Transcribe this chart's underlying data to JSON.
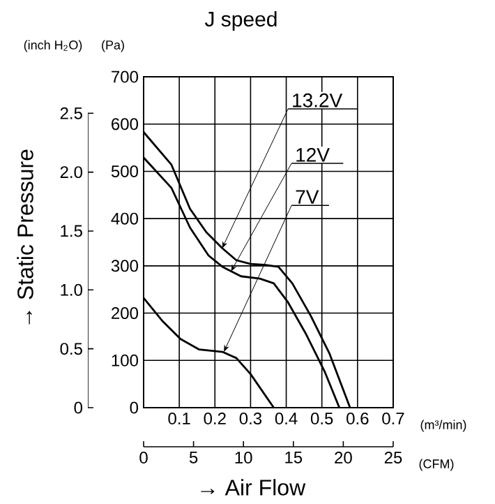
{
  "chart_data": {
    "type": "line",
    "title": "J speed",
    "xlabel": "→ Air Flow",
    "y2label": "→ Static Pressure",
    "xlim": [
      0,
      0.7
    ],
    "xticks": [
      0.1,
      0.2,
      0.3,
      0.4,
      0.5,
      0.6,
      0.7
    ],
    "ylim": [
      0,
      700
    ],
    "yticks": [
      0,
      100,
      200,
      300,
      400,
      500,
      600,
      700
    ],
    "y2lim": [
      0,
      2.81
    ],
    "y2ticks": [
      0,
      0.5,
      {
        "value": 1,
        "label": "1.0"
      },
      1.5,
      {
        "value": 2,
        "label": "2.0"
      },
      2.5
    ],
    "x2lim": [
      0,
      25
    ],
    "x2ticks": [
      0,
      5,
      10,
      15,
      20,
      25
    ],
    "grid": true,
    "annotations": [
      "(m³/min)",
      "(CFM)",
      "(inch H$_{2}$O)",
      "(Pa)",
      {
        "text": "13.2V",
        "x": 0.22,
        "y": 337
      },
      {
        "text": "12V",
        "x": 0.245,
        "y": 288
      },
      {
        "text": "7V",
        "x": 0.225,
        "y": 118
      }
    ],
    "series": [
      {
        "color": "#000000",
        "x": [
          0,
          0.078,
          0.13,
          0.176,
          0.221,
          0.26,
          0.3,
          0.339,
          0.378,
          0.417,
          0.469,
          0.521,
          0.579
        ],
        "values": [
          583,
          514,
          421,
          371,
          337,
          312,
          304,
          302,
          298,
          263,
          194,
          115,
          0
        ]
      },
      {
        "color": "#000000",
        "x": [
          0,
          0.078,
          0.13,
          0.182,
          0.221,
          0.273,
          0.326,
          0.365,
          0.404,
          0.456,
          0.508,
          0.549
        ],
        "values": [
          529,
          465,
          381,
          322,
          298,
          278,
          273,
          263,
          224,
          155,
          76,
          0
        ]
      },
      {
        "color": "#000000",
        "x": [
          0,
          0.052,
          0.104,
          0.156,
          0.221,
          0.26,
          0.3,
          0.365
        ],
        "values": [
          232,
          184,
          145,
          123,
          118,
          105,
          71,
          0
        ]
      }
    ]
  }
}
